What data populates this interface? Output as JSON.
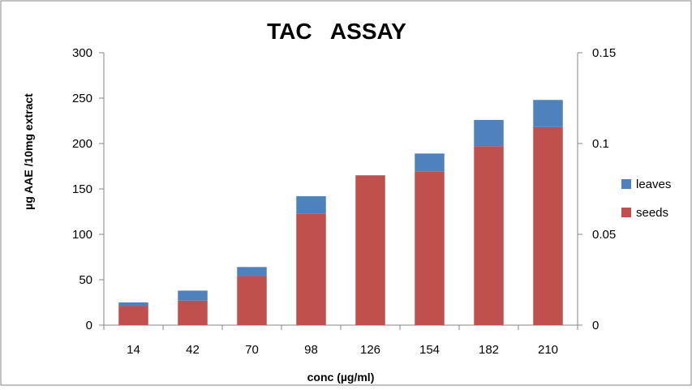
{
  "chart_data": {
    "type": "bar",
    "stacked": true,
    "title": "TAC   ASSAY",
    "xlabel": "conc (µg/ml)",
    "ylabel": "µg AAE /10mg extract",
    "categories": [
      "14",
      "42",
      "70",
      "98",
      "126",
      "154",
      "182",
      "210"
    ],
    "series": [
      {
        "name": "seeds",
        "color": "#C0504D",
        "values": [
          21,
          27,
          54,
          123,
          165,
          169,
          197,
          218
        ]
      },
      {
        "name": "leaves",
        "color": "#4F81BD",
        "values": [
          4,
          11,
          10,
          19,
          0,
          20,
          29,
          30
        ]
      }
    ],
    "ylim": [
      0,
      300
    ],
    "yticks": [
      "0",
      "50",
      "100",
      "150",
      "200",
      "250",
      "300"
    ],
    "y2lim": [
      0,
      0.15
    ],
    "y2ticks": [
      "0",
      "0.05",
      "0.1",
      "0.15"
    ],
    "legend": "right",
    "legend_order": [
      "leaves",
      "seeds"
    ],
    "grid": false
  }
}
